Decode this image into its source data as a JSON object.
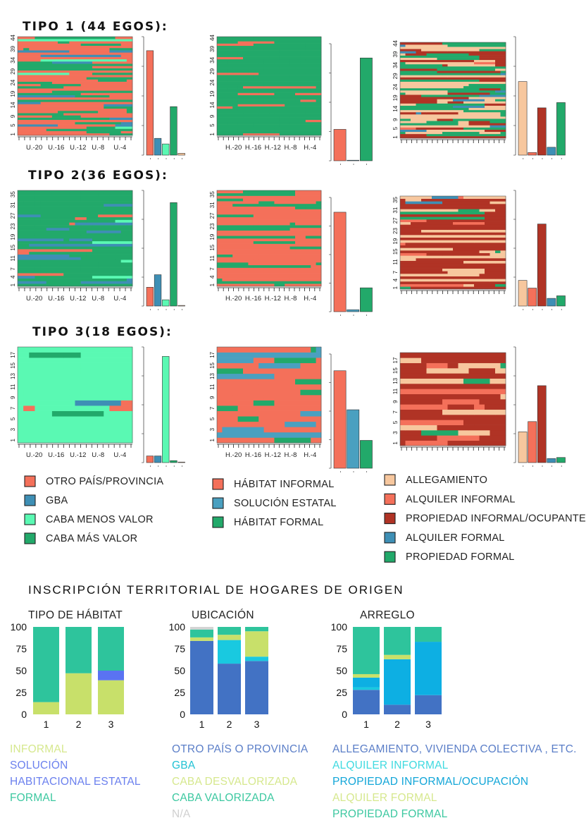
{
  "tipos": [
    {
      "title": "TIPO 1 (44 EGOS):",
      "n": 44,
      "ytick_labels": [
        "1",
        "5",
        "9",
        "14",
        "19",
        "24",
        "29",
        "34",
        "39",
        "44"
      ],
      "bars": {
        "origen": [
          56,
          9,
          6,
          26,
          1
        ],
        "habitat": [
          11,
          0.2,
          36
        ],
        "vivienda": [
          14,
          0.5,
          9,
          1.5,
          10
        ]
      }
    },
    {
      "title": "TIPO 2(36 EGOS):",
      "n": 36,
      "ytick_labels": [
        "1",
        "4",
        "7",
        "11",
        "15",
        "19",
        "23",
        "27",
        "31",
        "35"
      ],
      "bars": {
        "origen": [
          6,
          10,
          2,
          33,
          0.2
        ],
        "habitat": [
          25,
          0.5,
          6
        ],
        "vivienda": [
          5,
          3.5,
          16,
          1.5,
          2
        ]
      }
    },
    {
      "title": "TIPO 3(18 EGOS):",
      "n": 18,
      "ytick_labels": [
        "1",
        "3",
        "5",
        "7",
        "9",
        "11",
        "13",
        "15",
        "17"
      ],
      "bars": {
        "origen": [
          1,
          1,
          16,
          0.3,
          0
        ],
        "habitat": [
          7,
          4.2,
          2
        ],
        "vivienda": [
          3,
          4,
          7.5,
          0.4,
          0.5
        ]
      }
    }
  ],
  "x_labels_origen": [
    "U.-20",
    "U.-16",
    "U.-12",
    "U.-8",
    "U.-4"
  ],
  "x_labels_habitat": [
    "H.-20",
    "H.-16",
    "H.-12",
    "H.-8",
    "H.-4"
  ],
  "legend_origen": [
    {
      "label": "OTRO PAÍS/PROVINCIA",
      "color": "#F4705A"
    },
    {
      "label": "GBA",
      "color": "#3E8FB5"
    },
    {
      "label": "CABA MENOS VALOR",
      "color": "#5AF9B3"
    },
    {
      "label": "CABA MÁS VALOR",
      "color": "#22A96A"
    }
  ],
  "legend_habitat": [
    {
      "label": "HÁBITAT INFORMAL",
      "color": "#F4705A"
    },
    {
      "label": "SOLUCIÓN ESTATAL",
      "color": "#4AA0C0"
    },
    {
      "label": "HÁBITAT FORMAL",
      "color": "#22A96A"
    }
  ],
  "legend_vivienda": [
    {
      "label": "ALLEGAMIENTO",
      "color": "#F7C79E"
    },
    {
      "label": "ALQUILER INFORMAL",
      "color": "#F4705A"
    },
    {
      "label": "PROPIEDAD INFORMAL/OCUPANTE",
      "color": "#B03325"
    },
    {
      "label": "ALQUILER FORMAL",
      "color": "#3E8FB5"
    },
    {
      "label": "PROPIEDAD FORMAL",
      "color": "#22A96A"
    }
  ],
  "section_title": "INSCRIPCIÓN TERRITORIAL DE HOGARES DE ORIGEN",
  "chart_data": [
    {
      "type": "bar",
      "stacked": true,
      "title": "TIPO DE HÁBITAT",
      "categories": [
        "1",
        "2",
        "3"
      ],
      "ylim": [
        0,
        100
      ],
      "yticks": [
        0,
        25,
        50,
        75,
        100
      ],
      "series": [
        {
          "name": "INFORMAL",
          "color": "#C8E06A",
          "values": [
            14,
            47,
            39
          ]
        },
        {
          "name": "SOLUCIÓN HABITACIONAL ESTATAL",
          "color": "#5A73F2",
          "values": [
            0,
            0,
            11
          ]
        },
        {
          "name": "FORMAL",
          "color": "#2EC49C",
          "values": [
            86,
            53,
            50
          ]
        }
      ],
      "legend": [
        {
          "label": "INFORMAL",
          "color": "#D6E88E"
        },
        {
          "label": "SOLUCIÓN",
          "color": "#6B80EE"
        },
        {
          "label": "HABITACIONAL ESTATAL",
          "color": "#6B80EE"
        },
        {
          "label": "FORMAL",
          "color": "#3CC8A0"
        }
      ]
    },
    {
      "type": "bar",
      "stacked": true,
      "title": "UBICACIÓN",
      "categories": [
        "1",
        "2",
        "3"
      ],
      "ylim": [
        0,
        100
      ],
      "yticks": [
        0,
        25,
        50,
        75,
        100
      ],
      "series": [
        {
          "name": "OTRO PAÍS O PROVINCIA",
          "color": "#4272C4",
          "values": [
            84,
            58,
            61
          ]
        },
        {
          "name": "GBA",
          "color": "#19C9E0",
          "values": [
            0,
            27,
            5
          ]
        },
        {
          "name": "CABA DESVALORIZADA",
          "color": "#C8E06A",
          "values": [
            4,
            6,
            29
          ]
        },
        {
          "name": "CABA VALORIZADA",
          "color": "#2EC49C",
          "values": [
            9,
            9,
            5
          ]
        },
        {
          "name": "N/A",
          "color": "#D3D3D3",
          "values": [
            3,
            0,
            0
          ]
        }
      ],
      "legend": [
        {
          "label": "OTRO PAÍS O PROVINCIA",
          "color": "#5C7FC8"
        },
        {
          "label": "GBA",
          "color": "#22C2D4"
        },
        {
          "label": "CABA DESVALORIZADA",
          "color": "#D6E88E"
        },
        {
          "label": "CABA VALORIZADA",
          "color": "#3CC8A0"
        },
        {
          "label": "N/A",
          "color": "#D0D0D0"
        }
      ]
    },
    {
      "type": "bar",
      "stacked": true,
      "title": "ARREGLO",
      "categories": [
        "1",
        "2",
        "3"
      ],
      "ylim": [
        0,
        100
      ],
      "yticks": [
        0,
        25,
        50,
        75,
        100
      ],
      "series": [
        {
          "name": "ALLEGAMIENTO, VIVIENDA COLECTIVA , ETC.",
          "color": "#4272C4",
          "values": [
            28,
            11,
            22
          ]
        },
        {
          "name": "ALQUILER INFORMAL",
          "color": "#19C9E0",
          "values": [
            3,
            0,
            0
          ]
        },
        {
          "name": "PROPIEDAD INFORMAL/OCUPACIÓN",
          "color": "#0DAFE3",
          "values": [
            11,
            52,
            61
          ]
        },
        {
          "name": "ALQUILER FORMAL",
          "color": "#C8E06A",
          "values": [
            4,
            5,
            0
          ]
        },
        {
          "name": "PROPIEDAD FORMAL",
          "color": "#2EC49C",
          "values": [
            54,
            32,
            17
          ]
        }
      ],
      "legend": [
        {
          "label": "ALLEGAMIENTO, VIVIENDA COLECTIVA , ETC.",
          "color": "#5C7FC8"
        },
        {
          "label": "ALQUILER INFORMAL",
          "color": "#3FDAE0"
        },
        {
          "label": "PROPIEDAD INFORMAL/OCUPACIÓN",
          "color": "#12A6D8"
        },
        {
          "label": "ALQUILER FORMAL",
          "color": "#D6E88E"
        },
        {
          "label": "PROPIEDAD FORMAL",
          "color": "#3CC8A0"
        }
      ]
    }
  ]
}
